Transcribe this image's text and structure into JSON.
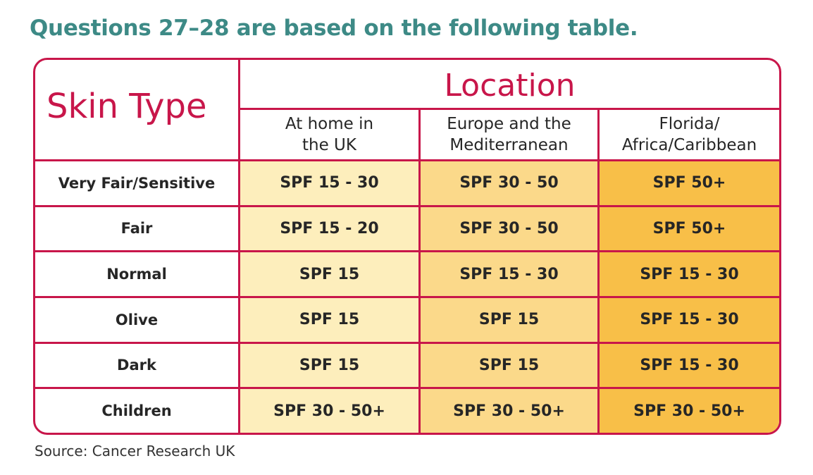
{
  "heading": "Questions 27–28 are based on the following table.",
  "table": {
    "skin_type_header": "Skin Type",
    "location_header": "Location",
    "columns": [
      {
        "line1": "At home in",
        "line2": "the UK"
      },
      {
        "line1": "Europe and the",
        "line2": "Mediterranean"
      },
      {
        "line1": "Florida/",
        "line2": "Africa/Caribbean"
      }
    ],
    "rows": [
      {
        "label": "Very Fair/Sensitive",
        "values": [
          "SPF 15 - 30",
          "SPF 30 - 50",
          "SPF 50+"
        ]
      },
      {
        "label": "Fair",
        "values": [
          "SPF 15 - 20",
          "SPF 30 - 50",
          "SPF 50+"
        ]
      },
      {
        "label": "Normal",
        "values": [
          "SPF 15",
          "SPF 15 - 30",
          "SPF 15 - 30"
        ]
      },
      {
        "label": "Olive",
        "values": [
          "SPF 15",
          "SPF 15",
          "SPF 15 - 30"
        ]
      },
      {
        "label": "Dark",
        "values": [
          "SPF 15",
          "SPF 15",
          "SPF 15 - 30"
        ]
      },
      {
        "label": "Children",
        "values": [
          "SPF 30 - 50+",
          "SPF 30 - 50+",
          "SPF 30 - 50+"
        ]
      }
    ]
  },
  "source": "Source: Cancer Research UK",
  "colors": {
    "heading": "#3d8a86",
    "border": "#c8164a",
    "column_1_fill": "#fdeebc",
    "column_2_fill": "#fbd98a",
    "column_3_fill": "#f8bf48"
  }
}
